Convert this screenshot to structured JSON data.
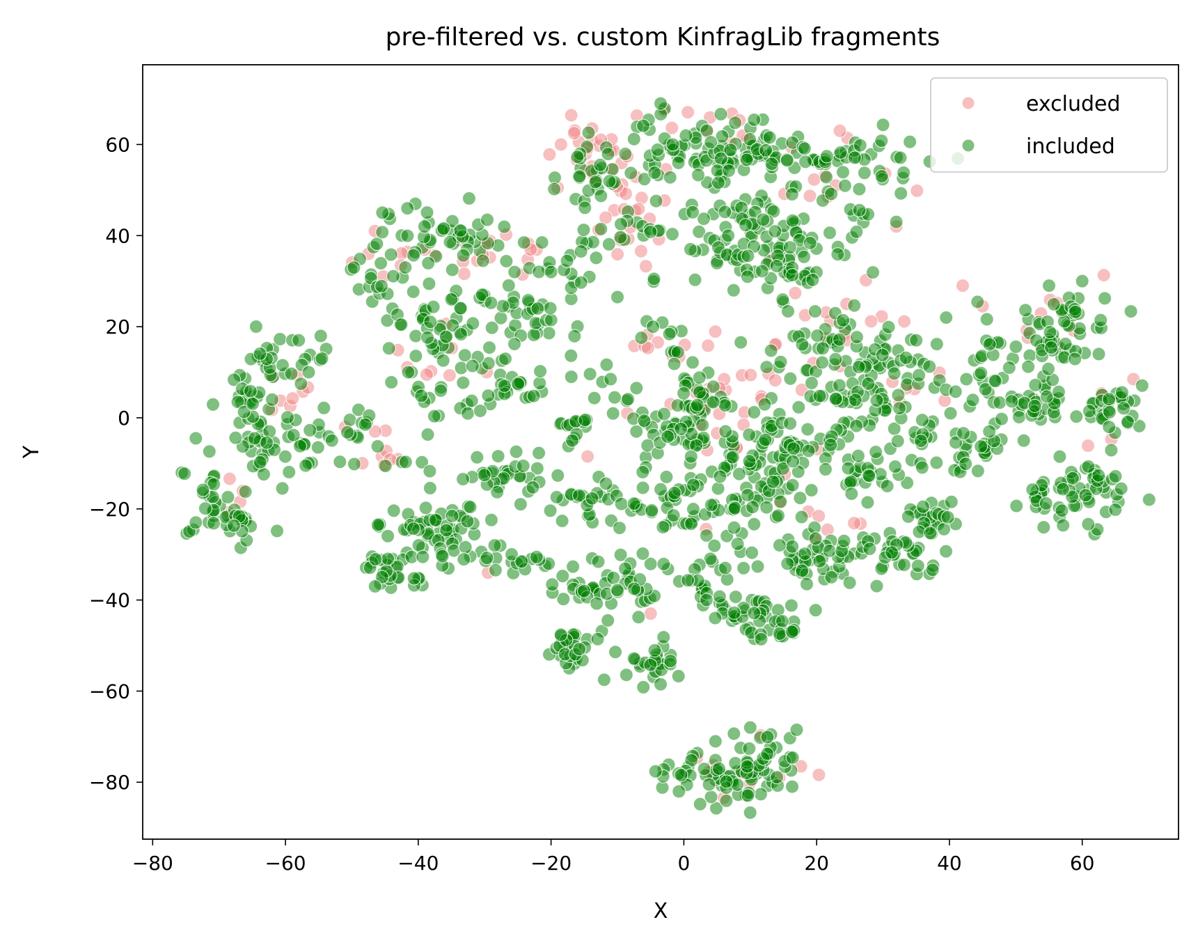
{
  "chart_data": {
    "type": "scatter",
    "title": "pre-filtered vs. custom KinfragLib fragments",
    "xlabel": "X",
    "ylabel": "Y",
    "xlim": [
      -81.5,
      74.5
    ],
    "ylim": [
      -92.5,
      77.5
    ],
    "xticks": [
      -80,
      -60,
      -40,
      -20,
      0,
      20,
      40,
      60
    ],
    "yticks": [
      -80,
      -60,
      -40,
      -20,
      0,
      20,
      40,
      60
    ],
    "xtick_labels": [
      "−80",
      "−60",
      "−40",
      "−20",
      "0",
      "20",
      "40",
      "60"
    ],
    "ytick_labels": [
      "−80",
      "−60",
      "−40",
      "−20",
      "0",
      "20",
      "40",
      "60"
    ],
    "grid": false,
    "legend_position": "top-right",
    "series": [
      {
        "name": "excluded",
        "color": "#f08080",
        "clusters": [
          {
            "cx": -11,
            "cy": 58,
            "sx": 6,
            "sy": 5,
            "n": 28
          },
          {
            "cx": -8,
            "cy": 42,
            "sx": 4,
            "sy": 6,
            "n": 18
          },
          {
            "cx": -28,
            "cy": 36,
            "sx": 5,
            "sy": 4,
            "n": 14
          },
          {
            "cx": -42,
            "cy": 35,
            "sx": 4,
            "sy": 3,
            "n": 8
          },
          {
            "cx": 2,
            "cy": 65,
            "sx": 4,
            "sy": 3,
            "n": 8
          },
          {
            "cx": 24,
            "cy": 52,
            "sx": 7,
            "sy": 6,
            "n": 10
          },
          {
            "cx": 8,
            "cy": 5,
            "sx": 6,
            "sy": 10,
            "n": 26
          },
          {
            "cx": -1,
            "cy": 15,
            "sx": 4,
            "sy": 5,
            "n": 10
          },
          {
            "cx": 24,
            "cy": 22,
            "sx": 6,
            "sy": 5,
            "n": 12
          },
          {
            "cx": -60,
            "cy": 5,
            "sx": 3,
            "sy": 3,
            "n": 8
          },
          {
            "cx": -44,
            "cy": -7,
            "sx": 3,
            "sy": 4,
            "n": 7
          },
          {
            "cx": 56,
            "cy": 20,
            "sx": 4,
            "sy": 6,
            "n": 8
          },
          {
            "cx": 20,
            "cy": -22,
            "sx": 5,
            "sy": 7,
            "n": 9
          },
          {
            "cx": 10,
            "cy": -78,
            "sx": 5,
            "sy": 5,
            "n": 12
          },
          {
            "cx": -68,
            "cy": -17,
            "sx": 2,
            "sy": 4,
            "n": 4
          },
          {
            "cx": 35,
            "cy": 5,
            "sx": 3,
            "sy": 5,
            "n": 6
          },
          {
            "cx": 63,
            "cy": -5,
            "sx": 3,
            "sy": 6,
            "n": 5
          },
          {
            "cx": -36,
            "cy": 14,
            "sx": 5,
            "sy": 6,
            "n": 8
          }
        ],
        "points": [
          [
            -18.5,
            60
          ],
          [
            -19,
            50.5
          ],
          [
            -9.5,
            39
          ],
          [
            9,
            -1.5
          ],
          [
            -5,
            -43
          ],
          [
            -2,
            3
          ],
          [
            19.5,
            12
          ],
          [
            45,
            24.5
          ],
          [
            23.5,
            63
          ],
          [
            32,
            42
          ],
          [
            -14.5,
            -8.5
          ],
          [
            -8.5,
            1
          ],
          [
            -51,
            -2
          ],
          [
            -46.5,
            -3
          ],
          [
            -47.5,
            36
          ],
          [
            42,
            29
          ],
          [
            -3,
            67.5
          ],
          [
            24.5,
            25
          ],
          [
            13,
            35
          ],
          [
            -29.5,
            -34
          ]
        ]
      },
      {
        "name": "included",
        "color": "#008000",
        "clusters": [
          {
            "cx": -60,
            "cy": 14,
            "sx": 3.5,
            "sy": 4,
            "n": 26
          },
          {
            "cx": -61,
            "cy": -6,
            "sx": 5,
            "sy": 5,
            "n": 48
          },
          {
            "cx": -66,
            "cy": 4,
            "sx": 3,
            "sy": 3,
            "n": 18
          },
          {
            "cx": -69,
            "cy": -22,
            "sx": 3,
            "sy": 3.5,
            "n": 34
          },
          {
            "cx": -72,
            "cy": -15,
            "sx": 2,
            "sy": 2,
            "n": 8
          },
          {
            "cx": -46,
            "cy": 31,
            "sx": 3,
            "sy": 5,
            "n": 22
          },
          {
            "cx": -36,
            "cy": 40,
            "sx": 5,
            "sy": 4,
            "n": 44
          },
          {
            "cx": -36,
            "cy": 20,
            "sx": 5,
            "sy": 6,
            "n": 44
          },
          {
            "cx": -30,
            "cy": 7,
            "sx": 5,
            "sy": 5,
            "n": 40
          },
          {
            "cx": -24,
            "cy": 24,
            "sx": 5,
            "sy": 8,
            "n": 40
          },
          {
            "cx": -48,
            "cy": -3,
            "sx": 3,
            "sy": 3,
            "n": 12
          },
          {
            "cx": -41,
            "cy": -8,
            "sx": 2,
            "sy": 3,
            "n": 6
          },
          {
            "cx": -27,
            "cy": -12,
            "sx": 4,
            "sy": 3,
            "n": 30
          },
          {
            "cx": -36,
            "cy": -25,
            "sx": 5,
            "sy": 4,
            "n": 58
          },
          {
            "cx": -44,
            "cy": -34,
            "sx": 2.5,
            "sy": 3,
            "n": 28
          },
          {
            "cx": -25,
            "cy": -31,
            "sx": 4,
            "sy": 2,
            "n": 18
          },
          {
            "cx": -16,
            "cy": -37,
            "sx": 4,
            "sy": 3,
            "n": 22
          },
          {
            "cx": -16,
            "cy": -50,
            "sx": 3,
            "sy": 4,
            "n": 30
          },
          {
            "cx": -5,
            "cy": -53,
            "sx": 3,
            "sy": 3,
            "n": 24
          },
          {
            "cx": -8,
            "cy": -36,
            "sx": 4,
            "sy": 4,
            "n": 26
          },
          {
            "cx": -15,
            "cy": 38,
            "sx": 3,
            "sy": 10,
            "n": 20
          },
          {
            "cx": -12,
            "cy": 53,
            "sx": 4,
            "sy": 6,
            "n": 30
          },
          {
            "cx": -3,
            "cy": 61,
            "sx": 5,
            "sy": 4,
            "n": 30
          },
          {
            "cx": 6,
            "cy": 57,
            "sx": 5,
            "sy": 5,
            "n": 40
          },
          {
            "cx": 16,
            "cy": 57,
            "sx": 6,
            "sy": 4,
            "n": 44
          },
          {
            "cx": 27,
            "cy": 56,
            "sx": 5,
            "sy": 4,
            "n": 30
          },
          {
            "cx": 9,
            "cy": 40,
            "sx": 6,
            "sy": 6,
            "n": 52
          },
          {
            "cx": 19,
            "cy": 40,
            "sx": 6,
            "sy": 6,
            "n": 44
          },
          {
            "cx": -6,
            "cy": 41,
            "sx": 3,
            "sy": 2,
            "n": 12
          },
          {
            "cx": 14,
            "cy": 31,
            "sx": 4,
            "sy": 4,
            "n": 24
          },
          {
            "cx": 23,
            "cy": 16,
            "sx": 6,
            "sy": 6,
            "n": 54
          },
          {
            "cx": 32,
            "cy": 12,
            "sx": 3,
            "sy": 4,
            "n": 20
          },
          {
            "cx": 27,
            "cy": 2,
            "sx": 6,
            "sy": 5,
            "n": 44
          },
          {
            "cx": 3,
            "cy": 4,
            "sx": 5,
            "sy": 6,
            "n": 40
          },
          {
            "cx": -2,
            "cy": -3,
            "sx": 4,
            "sy": 4,
            "n": 34
          },
          {
            "cx": 8,
            "cy": -10,
            "sx": 4,
            "sy": 4,
            "n": 34
          },
          {
            "cx": -17,
            "cy": -2,
            "sx": 3,
            "sy": 2,
            "n": 16
          },
          {
            "cx": -10,
            "cy": 6,
            "sx": 3,
            "sy": 3,
            "n": 12
          },
          {
            "cx": -13,
            "cy": -18,
            "sx": 4,
            "sy": 3,
            "n": 28
          },
          {
            "cx": -3,
            "cy": -18,
            "sx": 4,
            "sy": 4,
            "n": 30
          },
          {
            "cx": 6,
            "cy": -21,
            "sx": 3,
            "sy": 3,
            "n": 20
          },
          {
            "cx": 4,
            "cy": -32,
            "sx": 3,
            "sy": 3,
            "n": 16
          },
          {
            "cx": 6,
            "cy": -42,
            "sx": 3,
            "sy": 2,
            "n": 12
          },
          {
            "cx": 11,
            "cy": -44,
            "sx": 3,
            "sy": 3,
            "n": 26
          },
          {
            "cx": 16,
            "cy": -47,
            "sx": 2,
            "sy": 2,
            "n": 10
          },
          {
            "cx": 16,
            "cy": -4,
            "sx": 5,
            "sy": 5,
            "n": 36
          },
          {
            "cx": 13,
            "cy": -18,
            "sx": 3,
            "sy": 3,
            "n": 18
          },
          {
            "cx": 21,
            "cy": -30,
            "sx": 5,
            "sy": 4,
            "n": 50
          },
          {
            "cx": 31,
            "cy": -30,
            "sx": 4,
            "sy": 3,
            "n": 30
          },
          {
            "cx": 26,
            "cy": -12,
            "sx": 5,
            "sy": 4,
            "n": 34
          },
          {
            "cx": 37,
            "cy": -22,
            "sx": 3,
            "sy": 3,
            "n": 26
          },
          {
            "cx": 37,
            "cy": -5,
            "sx": 3,
            "sy": 4,
            "n": 14
          },
          {
            "cx": 44,
            "cy": -8,
            "sx": 4,
            "sy": 3,
            "n": 24
          },
          {
            "cx": 42,
            "cy": 10,
            "sx": 4,
            "sy": 4,
            "n": 20
          },
          {
            "cx": 48,
            "cy": 12,
            "sx": 3,
            "sy": 6,
            "n": 16
          },
          {
            "cx": 52,
            "cy": 3,
            "sx": 3,
            "sy": 3,
            "n": 28
          },
          {
            "cx": 56,
            "cy": 16,
            "sx": 3,
            "sy": 6,
            "n": 36
          },
          {
            "cx": 59,
            "cy": 24,
            "sx": 3,
            "sy": 3,
            "n": 18
          },
          {
            "cx": 64,
            "cy": 2,
            "sx": 3,
            "sy": 3,
            "n": 30
          },
          {
            "cx": 61,
            "cy": -16,
            "sx": 4,
            "sy": 5,
            "n": 44
          },
          {
            "cx": 54,
            "cy": -18,
            "sx": 3,
            "sy": 3,
            "n": 18
          },
          {
            "cx": 8,
            "cy": -79,
            "sx": 5,
            "sy": 4,
            "n": 60
          },
          {
            "cx": 13,
            "cy": -73,
            "sx": 3,
            "sy": 3,
            "n": 18
          },
          {
            "cx": -1,
            "cy": -80,
            "sx": 2,
            "sy": 2,
            "n": 10
          },
          {
            "cx": -3,
            "cy": 17,
            "sx": 2,
            "sy": 3,
            "n": 8
          },
          {
            "cx": 3,
            "cy": -38,
            "sx": 2,
            "sy": 2,
            "n": 6
          }
        ],
        "points": [
          [
            -3.5,
            69
          ],
          [
            -41,
            10
          ],
          [
            -4.5,
            30.5
          ],
          [
            -10,
            26.5
          ],
          [
            -25.5,
            32
          ],
          [
            32,
            43
          ],
          [
            -3.5,
            -58.5
          ],
          [
            -56.5,
            10
          ],
          [
            -54.5,
            13
          ],
          [
            -12,
            -57.5
          ],
          [
            7.5,
            28
          ],
          [
            55,
            29
          ],
          [
            60,
            30
          ],
          [
            39.5,
            22
          ],
          [
            35,
            17
          ],
          [
            -73.5,
            -4.5
          ],
          [
            -62,
            4
          ],
          [
            -53,
            -5
          ],
          [
            17,
            -68.5
          ],
          [
            10,
            -68
          ],
          [
            -58,
            17
          ],
          [
            -35,
            26
          ],
          [
            46,
            -3
          ],
          [
            62.5,
            14
          ],
          [
            -46.5,
            -37
          ],
          [
            -41.5,
            10
          ],
          [
            -20,
            32
          ],
          [
            -22,
            24
          ],
          [
            1,
            37
          ],
          [
            9,
            -33
          ]
        ]
      }
    ]
  }
}
